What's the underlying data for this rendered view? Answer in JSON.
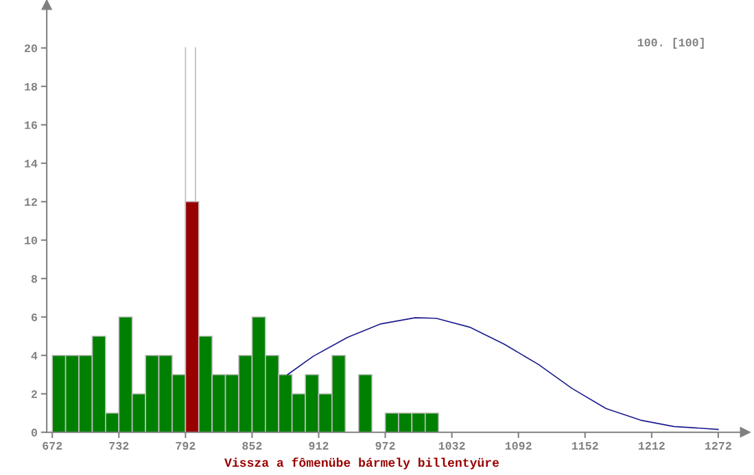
{
  "chart_data": {
    "type": "histogram",
    "bins": [
      672,
      684,
      696,
      708,
      720,
      732,
      744,
      756,
      768,
      780,
      792,
      804,
      816,
      828,
      840,
      852,
      864,
      876,
      888,
      900,
      912,
      924,
      936,
      948,
      960,
      972,
      984,
      996,
      1008,
      1020
    ],
    "values": [
      4,
      4,
      4,
      5,
      1,
      6,
      2,
      4,
      4,
      3,
      12,
      5,
      3,
      3,
      4,
      6,
      4,
      3,
      2,
      3,
      2,
      4,
      0,
      3,
      0,
      1,
      1,
      1,
      1
    ],
    "colors": [
      "#008000",
      "#008000",
      "#008000",
      "#008000",
      "#008000",
      "#008000",
      "#008000",
      "#008000",
      "#008000",
      "#008000",
      "#990000",
      "#008000",
      "#008000",
      "#008000",
      "#008000",
      "#008000",
      "#008000",
      "#008000",
      "#008000",
      "#008000",
      "#008000",
      "#008000",
      "#008000",
      "#008000",
      "#008000",
      "#008000",
      "#008000",
      "#008000",
      "#008000"
    ],
    "series": [
      {
        "type": "line",
        "color": "#1a1a8c",
        "x": [
          884,
          907,
          938,
          968,
          999,
          1018,
          1048,
          1079,
          1110,
          1140,
          1171,
          1202,
          1232,
          1272
        ],
        "values": [
          3.0,
          3.95,
          4.94,
          5.64,
          5.96,
          5.93,
          5.47,
          4.59,
          3.53,
          2.29,
          1.23,
          0.63,
          0.3,
          0.15
        ]
      }
    ],
    "ref_lines": [
      {
        "axis": "x",
        "value": 792,
        "label": null,
        "color": "#c8c8c8"
      },
      {
        "axis": "x",
        "value": 801,
        "label": null,
        "color": "#c8c8c8"
      }
    ],
    "xlim": [
      667,
      1292
    ],
    "ylim": [
      0,
      22
    ],
    "xticks": [
      672,
      732,
      792,
      852,
      912,
      972,
      1032,
      1092,
      1152,
      1212,
      1272
    ],
    "yticks": [
      0,
      2,
      4,
      6,
      8,
      10,
      12,
      14,
      16,
      18,
      20
    ],
    "grid": false,
    "annotations": [
      "100. [100]",
      "Vissza a fômenübe bármely billentyüre"
    ]
  }
}
